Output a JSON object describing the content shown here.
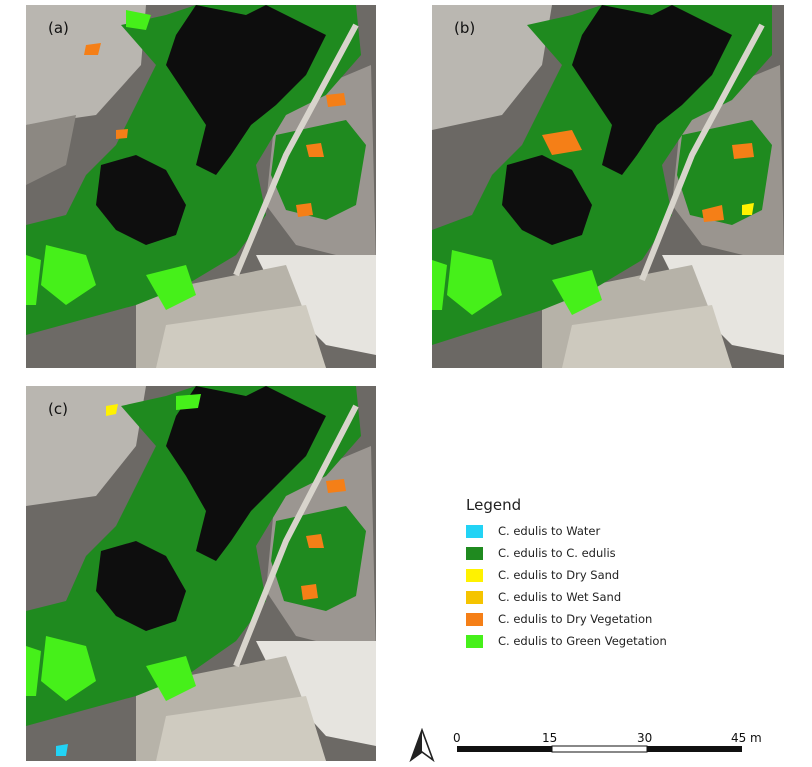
{
  "panels": [
    {
      "label": "(a)"
    },
    {
      "label": "(b)"
    },
    {
      "label": "(c)"
    }
  ],
  "legend": {
    "title": "Legend",
    "items": [
      {
        "label": "C. edulis to Water",
        "color": "#22d3f5"
      },
      {
        "label": "C. edulis to C. edulis",
        "color": "#1f8a1f"
      },
      {
        "label": "C. edulis to Dry Sand",
        "color": "#fff200"
      },
      {
        "label": "C. edulis to Wet Sand",
        "color": "#f5c400"
      },
      {
        "label": "C. edulis to Dry Vegetation",
        "color": "#f57f17"
      },
      {
        "label": "C. edulis to Green Vegetation",
        "color": "#46f01a"
      }
    ]
  },
  "scale_bar": {
    "ticks": [
      "0",
      "15",
      "30",
      "45"
    ],
    "unit": "m"
  },
  "icons": {
    "north_arrow": "north-arrow-icon"
  }
}
